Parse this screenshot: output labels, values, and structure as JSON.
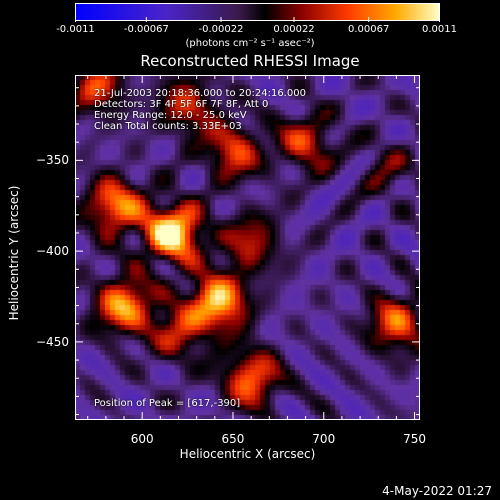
{
  "chart_data": {
    "type": "heatmap",
    "title": "Reconstructed RHESSI Image",
    "xlabel": "Heliocentric X (arcsec)",
    "ylabel": "Heliocentric Y (arcsec)",
    "xlim": [
      563,
      753
    ],
    "ylim": [
      -493,
      -303
    ],
    "x_ticks": [
      600,
      650,
      700,
      750
    ],
    "y_ticks": [
      -350,
      -400,
      -450
    ],
    "colorbar": {
      "range": [
        -0.0011,
        0.0011
      ],
      "ticks": [
        "-0.0011",
        "-0.00067",
        "-0.00022",
        "0.00022",
        "0.00067",
        "0.0011"
      ],
      "units_label": "(photons cm⁻² s⁻¹ asec⁻²)"
    },
    "annotations": [
      "21-Jul-2003 20:18:36.000 to 20:24:16.000",
      "Detectors: 3F 4F 5F 6F 7F 8F, Att 0",
      "Energy Range: 12.0 - 25.0 keV",
      "Clean    Total counts: 3.33E+03"
    ],
    "peak_label": "Position of Peak = [617,-390]",
    "peak": {
      "x": 617,
      "y": -390
    },
    "sources": [
      {
        "x": 617,
        "y": -390,
        "amp": 1.0
      },
      {
        "x": 642,
        "y": -428,
        "amp": 0.85
      },
      {
        "x": 590,
        "y": -430,
        "amp": 0.75
      },
      {
        "x": 585,
        "y": -375,
        "amp": 0.7
      },
      {
        "x": 660,
        "y": -470,
        "amp": 0.65
      },
      {
        "x": 740,
        "y": -440,
        "amp": 0.6
      },
      {
        "x": 650,
        "y": -345,
        "amp": 0.55
      },
      {
        "x": 625,
        "y": -320,
        "amp": 0.5
      },
      {
        "x": 690,
        "y": -340,
        "amp": 0.5
      },
      {
        "x": 660,
        "y": -395,
        "amp": 0.45
      },
      {
        "x": 620,
        "y": -445,
        "amp": 0.45
      },
      {
        "x": 575,
        "y": -310,
        "amp": 0.5
      },
      {
        "x": 735,
        "y": -355,
        "amp": 0.25
      }
    ]
  },
  "footer": {
    "date": "4-May-2022 01:27"
  }
}
